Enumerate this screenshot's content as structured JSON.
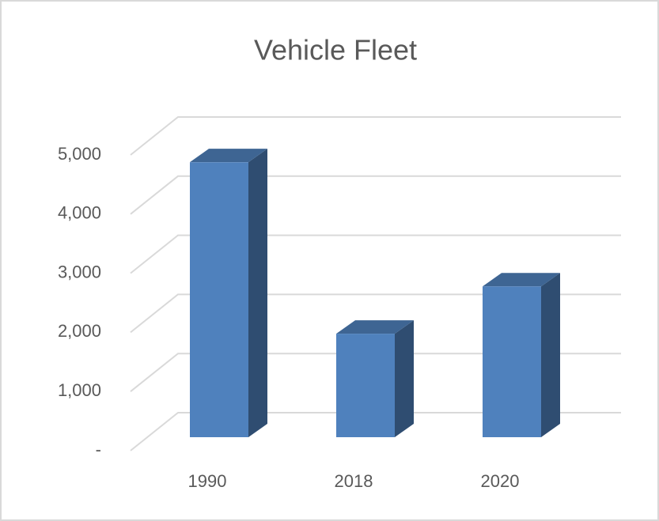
{
  "chart_data": {
    "type": "bar3d",
    "title": "Vehicle Fleet",
    "categories": [
      "1990",
      "2018",
      "2020"
    ],
    "values": [
      4650,
      1750,
      2550
    ],
    "color": "#4f81bd",
    "ylim": [
      0,
      5000
    ],
    "yticks": [
      {
        "value": 0,
        "label": "-"
      },
      {
        "value": 1000,
        "label": "1,000"
      },
      {
        "value": 2000,
        "label": "2,000"
      },
      {
        "value": 3000,
        "label": "3,000"
      },
      {
        "value": 4000,
        "label": "4,000"
      },
      {
        "value": 5000,
        "label": "5,000"
      }
    ],
    "grid": true
  }
}
